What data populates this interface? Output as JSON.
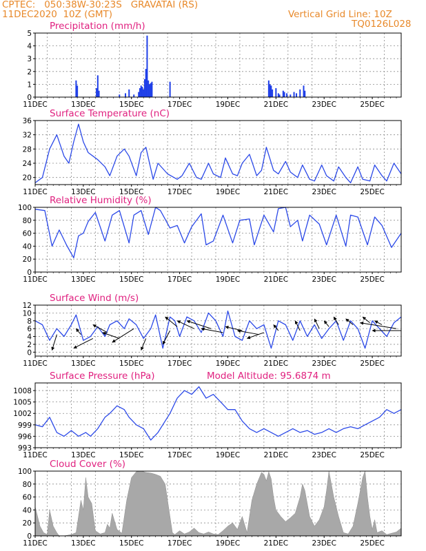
{
  "header": {
    "line1": "CPTEC:   050:38W-30:23S   GRAVATAI (RS)",
    "line2": "11DEC2020  10Z (GMT)",
    "grid_note": "Vertical Grid Line: 10Z",
    "run_code": "TQ0126L028",
    "model_altitude": "Model Altitude: 95.6874  m"
  },
  "colors": {
    "header": "#e8892a",
    "title": "#e0207f",
    "line": "#2a48e8",
    "bar": "#1f3fe8",
    "cloud": "#a8a8a8"
  },
  "x_ticks": [
    "11DEC",
    "13DEC",
    "15DEC",
    "17DEC",
    "19DEC",
    "21DEC",
    "23DEC",
    "25DEC"
  ],
  "x_tick_days": [
    11,
    13,
    15,
    17,
    19,
    21,
    23,
    25
  ],
  "x_range": [
    11,
    26.2
  ],
  "chart_data": [
    {
      "id": "precip",
      "type": "bar",
      "title": "Precipitation (mm/h)",
      "ylim": [
        0,
        5
      ],
      "yticks": [
        0,
        1,
        2,
        3,
        4,
        5
      ],
      "points": [
        [
          12.7,
          1.3
        ],
        [
          12.75,
          0.9
        ],
        [
          13.55,
          0.7
        ],
        [
          13.6,
          1.7
        ],
        [
          13.65,
          0.5
        ],
        [
          14.5,
          0.2
        ],
        [
          14.75,
          0.3
        ],
        [
          14.9,
          0.6
        ],
        [
          15.1,
          0.2
        ],
        [
          15.3,
          0.4
        ],
        [
          15.35,
          0.7
        ],
        [
          15.4,
          0.9
        ],
        [
          15.45,
          0.8
        ],
        [
          15.5,
          0.6
        ],
        [
          15.55,
          1.4
        ],
        [
          15.6,
          2.2
        ],
        [
          15.65,
          4.8
        ],
        [
          15.7,
          1.3
        ],
        [
          15.75,
          1.0
        ],
        [
          15.8,
          1.1
        ],
        [
          15.85,
          1.2
        ],
        [
          16.6,
          1.2
        ],
        [
          20.7,
          1.3
        ],
        [
          20.75,
          1.0
        ],
        [
          20.8,
          0.9
        ],
        [
          20.85,
          0.6
        ],
        [
          21.0,
          0.7
        ],
        [
          21.1,
          0.3
        ],
        [
          21.15,
          0.2
        ],
        [
          21.3,
          0.5
        ],
        [
          21.35,
          0.4
        ],
        [
          21.45,
          0.3
        ],
        [
          21.6,
          0.2
        ],
        [
          21.75,
          0.4
        ],
        [
          21.85,
          0.3
        ],
        [
          22.0,
          0.6
        ],
        [
          22.15,
          0.9
        ],
        [
          22.2,
          0.5
        ]
      ]
    },
    {
      "id": "temp",
      "type": "line",
      "title": "Surface Temperature (nC)",
      "ylim": [
        18,
        36
      ],
      "yticks": [
        20,
        24,
        28,
        32,
        36
      ],
      "x": [
        11.0,
        11.3,
        11.6,
        11.9,
        12.2,
        12.4,
        12.6,
        12.8,
        13.0,
        13.2,
        13.6,
        13.9,
        14.1,
        14.4,
        14.7,
        14.9,
        15.2,
        15.4,
        15.6,
        15.9,
        16.1,
        16.5,
        16.9,
        17.1,
        17.4,
        17.7,
        17.9,
        18.2,
        18.4,
        18.7,
        18.9,
        19.2,
        19.4,
        19.6,
        19.9,
        20.2,
        20.4,
        20.6,
        20.9,
        21.1,
        21.4,
        21.6,
        21.9,
        22.1,
        22.4,
        22.6,
        22.9,
        23.1,
        23.4,
        23.6,
        23.9,
        24.1,
        24.4,
        24.6,
        24.9,
        25.1,
        25.4,
        25.6,
        25.9,
        26.2
      ],
      "y": [
        18.5,
        20,
        28,
        32,
        26,
        24,
        30,
        35,
        30,
        27,
        25,
        23,
        20.5,
        26,
        28,
        26,
        20.5,
        27,
        28.5,
        19.5,
        24,
        21,
        19.5,
        20.5,
        24,
        20,
        19.5,
        24,
        21,
        20,
        25.5,
        21,
        20.5,
        24,
        26.5,
        20.5,
        22,
        28.5,
        22,
        21,
        24.5,
        21.5,
        20,
        23.5,
        19.5,
        19,
        23.5,
        20.5,
        19,
        23,
        20,
        18.5,
        23,
        19.5,
        19,
        23.5,
        20.5,
        19,
        24,
        21
      ]
    },
    {
      "id": "rh",
      "type": "line",
      "title": "Relative Humidity (%)",
      "ylim": [
        0,
        100
      ],
      "yticks": [
        0,
        20,
        40,
        60,
        80,
        100
      ],
      "x": [
        11.0,
        11.4,
        11.7,
        12.0,
        12.3,
        12.6,
        12.8,
        13.0,
        13.2,
        13.5,
        13.9,
        14.2,
        14.5,
        14.9,
        15.1,
        15.4,
        15.7,
        16.0,
        16.2,
        16.6,
        16.9,
        17.2,
        17.5,
        17.9,
        18.1,
        18.4,
        18.8,
        19.2,
        19.5,
        19.9,
        20.1,
        20.5,
        20.9,
        21.1,
        21.4,
        21.6,
        21.9,
        22.1,
        22.4,
        22.8,
        23.1,
        23.5,
        23.9,
        24.1,
        24.4,
        24.8,
        25.1,
        25.4,
        25.8,
        26.2
      ],
      "y": [
        97,
        95,
        40,
        65,
        42,
        22,
        56,
        60,
        78,
        92,
        48,
        88,
        95,
        45,
        88,
        95,
        58,
        100,
        95,
        68,
        72,
        45,
        70,
        90,
        42,
        48,
        88,
        45,
        80,
        82,
        42,
        88,
        62,
        98,
        100,
        70,
        80,
        48,
        88,
        74,
        42,
        88,
        40,
        88,
        85,
        42,
        85,
        72,
        38,
        60
      ]
    },
    {
      "id": "wind",
      "type": "line",
      "title": "Surface Wind (m/s)",
      "ylim": [
        -1,
        12
      ],
      "yticks": [
        0,
        2,
        4,
        6,
        8,
        10,
        12
      ],
      "x": [
        11.0,
        11.3,
        11.6,
        11.9,
        12.2,
        12.5,
        12.7,
        13.0,
        13.3,
        13.6,
        13.9,
        14.1,
        14.4,
        14.7,
        14.9,
        15.2,
        15.5,
        15.8,
        16.0,
        16.3,
        16.6,
        16.8,
        17.0,
        17.3,
        17.6,
        17.9,
        18.2,
        18.5,
        18.8,
        19.0,
        19.3,
        19.6,
        19.9,
        20.2,
        20.5,
        20.8,
        21.1,
        21.4,
        21.7,
        22.0,
        22.3,
        22.6,
        22.9,
        23.2,
        23.5,
        23.8,
        24.1,
        24.4,
        24.7,
        25.0,
        25.3,
        25.6,
        25.9,
        26.2
      ],
      "y": [
        8,
        7,
        3,
        6,
        4,
        7,
        9.5,
        3,
        4,
        6.5,
        4,
        7,
        8,
        6,
        8.5,
        7,
        3.5,
        6,
        9.5,
        1,
        9,
        8,
        4,
        9,
        8,
        5,
        10,
        8,
        4,
        10.5,
        4,
        3,
        8,
        6,
        7,
        1,
        8,
        7,
        3,
        8,
        4,
        7,
        3.5,
        6,
        8,
        3,
        8,
        6,
        1,
        8,
        6,
        4,
        7.5,
        9
      ],
      "arrows": [
        [
          11.9,
          4.5,
          11.7,
          0.5
        ],
        [
          12.9,
          4.5,
          12.7,
          6.0
        ],
        [
          13.4,
          3.5,
          12.6,
          1.0
        ],
        [
          14.0,
          5.0,
          13.4,
          7.0
        ],
        [
          14.5,
          3.5,
          13.8,
          5.0
        ],
        [
          15.1,
          6.0,
          14.2,
          2.5
        ],
        [
          15.6,
          3.5,
          15.4,
          0.5
        ],
        [
          16.6,
          5.5,
          16.3,
          2.0
        ],
        [
          16.9,
          6.5,
          16.4,
          9.0
        ],
        [
          17.6,
          6.0,
          16.9,
          8.0
        ],
        [
          18.3,
          6.0,
          17.3,
          8.0
        ],
        [
          18.8,
          5.0,
          17.9,
          6.0
        ],
        [
          19.6,
          5.5,
          18.9,
          6.5
        ],
        [
          20.3,
          4.5,
          19.4,
          5.5
        ],
        [
          20.5,
          5.0,
          19.8,
          3.5
        ],
        [
          21.1,
          5.5,
          20.9,
          7.0
        ],
        [
          22.0,
          5.5,
          21.8,
          8.0
        ],
        [
          22.8,
          6.0,
          22.6,
          8.5
        ],
        [
          23.2,
          6.5,
          23.0,
          8.0
        ],
        [
          23.6,
          7.0,
          23.4,
          9.0
        ],
        [
          24.2,
          7.0,
          23.9,
          8.5
        ],
        [
          24.9,
          7.5,
          24.6,
          9.0
        ],
        [
          25.4,
          7.0,
          25.1,
          8.0
        ],
        [
          26.0,
          6.0,
          24.5,
          7.5
        ],
        [
          26.2,
          5.5,
          25.0,
          5.5
        ]
      ]
    },
    {
      "id": "pres",
      "type": "line",
      "title": "Surface Pressure (hPa)",
      "ylim": [
        993,
        1010
      ],
      "yticks": [
        993,
        996,
        999,
        1002,
        1005,
        1008
      ],
      "x": [
        11.0,
        11.3,
        11.6,
        11.9,
        12.2,
        12.5,
        12.8,
        13.1,
        13.3,
        13.6,
        13.9,
        14.1,
        14.4,
        14.7,
        14.9,
        15.2,
        15.5,
        15.8,
        16.1,
        16.4,
        16.6,
        16.9,
        17.2,
        17.5,
        17.8,
        18.1,
        18.4,
        18.7,
        19.0,
        19.3,
        19.6,
        19.9,
        20.2,
        20.5,
        20.8,
        21.1,
        21.4,
        21.7,
        22.0,
        22.3,
        22.6,
        22.9,
        23.2,
        23.5,
        23.8,
        24.1,
        24.4,
        24.7,
        25.0,
        25.3,
        25.6,
        25.9,
        26.2
      ],
      "y": [
        999,
        998.5,
        1001,
        997,
        996,
        997.5,
        996,
        997,
        996,
        998,
        1001,
        1002,
        1004,
        1003,
        1001,
        999,
        998,
        995,
        997,
        1000,
        1002,
        1006,
        1008,
        1007,
        1009,
        1006,
        1007,
        1005,
        1003,
        1003,
        1000,
        998,
        997,
        998,
        997,
        996,
        997,
        998,
        997,
        997.5,
        996.5,
        997,
        998,
        997,
        998,
        998.5,
        998,
        999,
        1000,
        1001,
        1003,
        1002,
        1003
      ]
    },
    {
      "id": "cloud",
      "type": "area",
      "title": "Cloud Cover (%)",
      "ylim": [
        0,
        100
      ],
      "yticks": [
        0,
        20,
        40,
        60,
        80,
        100
      ],
      "x": [
        11.0,
        11.1,
        11.2,
        11.35,
        11.5,
        11.6,
        11.75,
        11.9,
        12.0,
        12.2,
        12.5,
        12.7,
        12.8,
        12.9,
        13.0,
        13.1,
        13.2,
        13.35,
        13.5,
        13.7,
        13.9,
        14.0,
        14.1,
        14.2,
        14.4,
        14.6,
        14.8,
        15.0,
        15.2,
        15.4,
        15.6,
        15.8,
        16.0,
        16.2,
        16.4,
        16.5,
        16.6,
        16.7,
        16.8,
        17.0,
        17.2,
        17.4,
        17.6,
        17.8,
        18.0,
        18.2,
        18.4,
        18.6,
        18.8,
        19.0,
        19.2,
        19.4,
        19.6,
        19.8,
        20.0,
        20.2,
        20.4,
        20.5,
        20.6,
        20.7,
        20.8,
        20.9,
        21.0,
        21.2,
        21.4,
        21.6,
        21.8,
        22.0,
        22.1,
        22.2,
        22.4,
        22.6,
        22.8,
        23.0,
        23.1,
        23.2,
        23.4,
        23.6,
        23.8,
        24.0,
        24.2,
        24.4,
        24.6,
        24.7,
        24.8,
        24.9,
        25.0,
        25.1,
        25.2,
        25.4,
        25.6,
        25.8,
        26.0,
        26.2
      ],
      "y": [
        45,
        30,
        15,
        5,
        2,
        40,
        15,
        5,
        0,
        0,
        2,
        5,
        30,
        55,
        40,
        90,
        60,
        50,
        8,
        3,
        5,
        18,
        12,
        35,
        10,
        4,
        55,
        90,
        99,
        100,
        98,
        97,
        95,
        92,
        80,
        55,
        30,
        5,
        2,
        8,
        3,
        6,
        12,
        5,
        3,
        6,
        3,
        2,
        8,
        15,
        20,
        10,
        30,
        5,
        55,
        80,
        98,
        95,
        85,
        99,
        88,
        60,
        40,
        30,
        22,
        28,
        35,
        60,
        80,
        70,
        30,
        15,
        25,
        45,
        70,
        100,
        60,
        30,
        5,
        3,
        15,
        50,
        90,
        100,
        60,
        30,
        10,
        25,
        5,
        8,
        2,
        4,
        6,
        12
      ]
    }
  ]
}
